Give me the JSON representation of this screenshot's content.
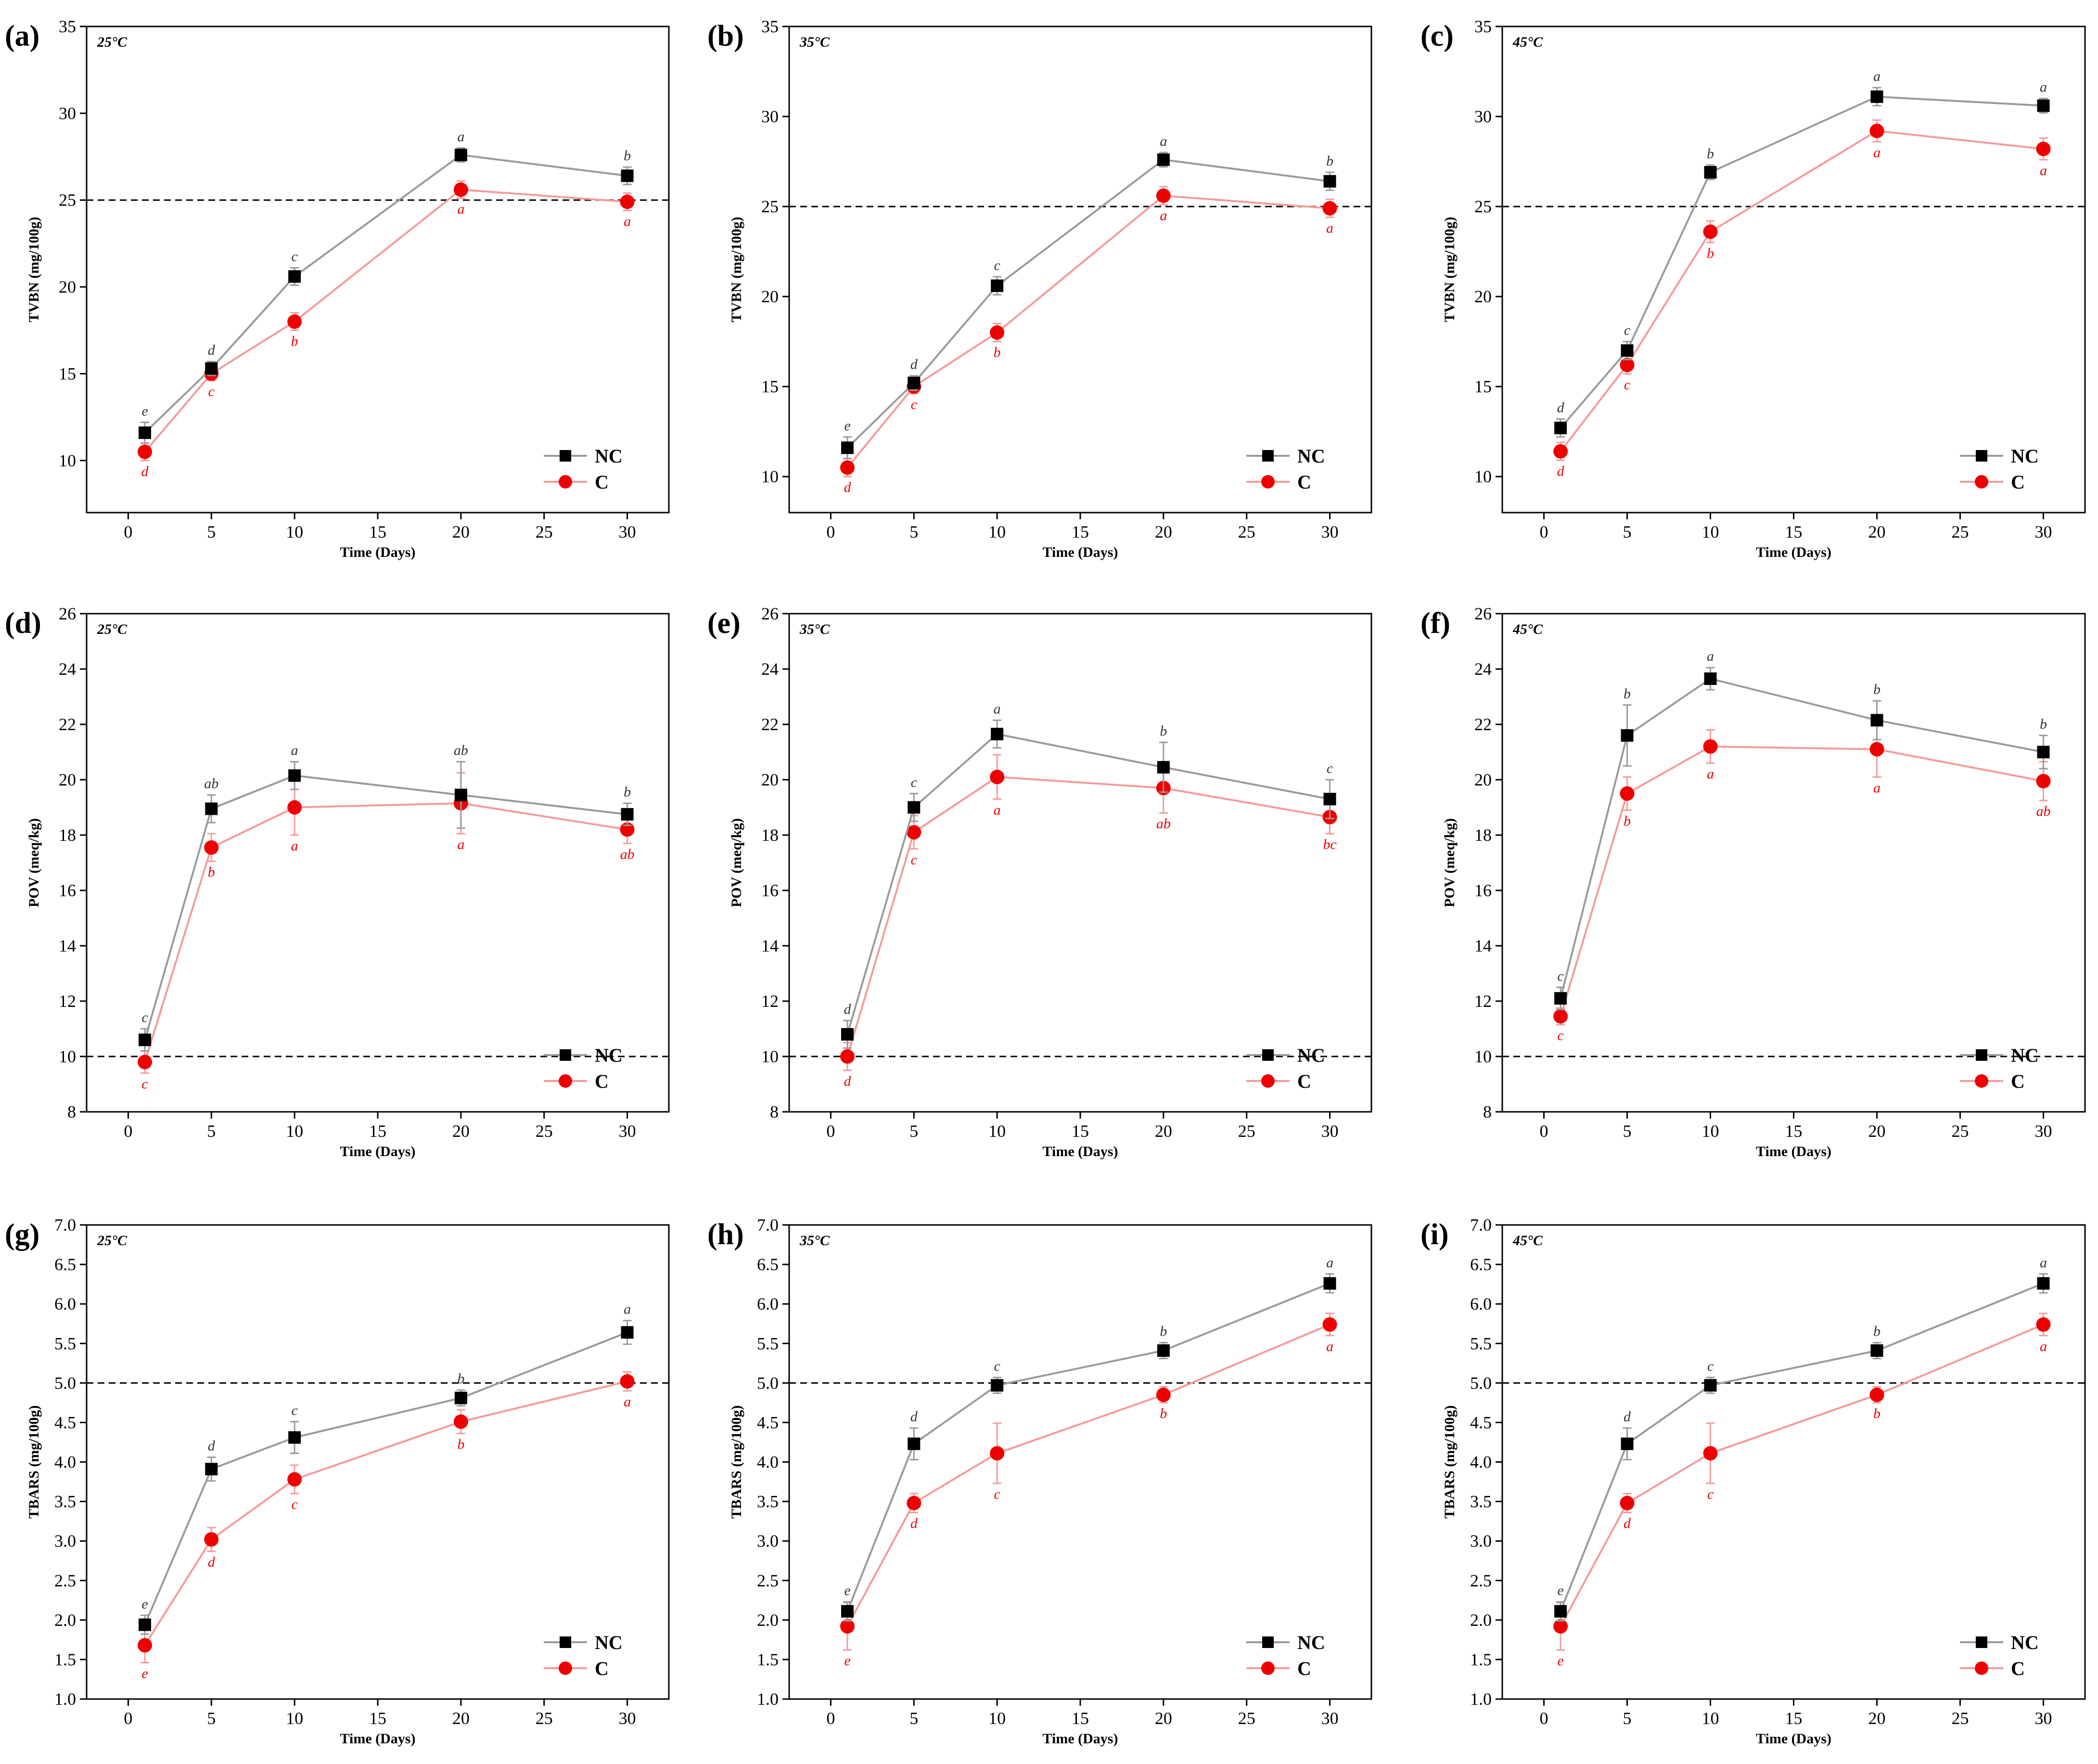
{
  "figure": {
    "series_names": [
      "NC",
      "C"
    ],
    "colors": {
      "NC_marker": "#000000",
      "NC_line": "#9a9a9a",
      "C_marker": "#ee0000",
      "C_line": "#f59a9a",
      "sig_NC": "#333333",
      "sig_C": "#ee0000"
    }
  },
  "chart_data": [
    {
      "panel": "(a)",
      "temperature": "25°C",
      "type": "line",
      "xlabel": "Time (Days)",
      "ylabel": "TVBN (mg/100g)",
      "xlim": [
        -2.5,
        32.5
      ],
      "ylim": [
        7,
        35
      ],
      "xticks": [
        0,
        5,
        10,
        15,
        20,
        25,
        30
      ],
      "yticks": [
        10,
        15,
        20,
        25,
        30,
        35
      ],
      "threshold": 25,
      "x": [
        1,
        5,
        10,
        20,
        30
      ],
      "series": [
        {
          "name": "NC",
          "values": [
            11.6,
            15.3,
            20.6,
            27.6,
            26.4
          ],
          "errors": [
            0.6,
            0.4,
            0.5,
            0.4,
            0.5
          ],
          "letters": [
            "e",
            "d",
            "c",
            "a",
            "b"
          ]
        },
        {
          "name": "C",
          "values": [
            10.5,
            15.0,
            18.0,
            25.6,
            24.9
          ],
          "errors": [
            0.5,
            0.4,
            0.5,
            0.5,
            0.5
          ],
          "letters": [
            "d",
            "c",
            "b",
            "a",
            "a"
          ]
        }
      ]
    },
    {
      "panel": "(b)",
      "temperature": "35°C",
      "type": "line",
      "xlabel": "Time (Days)",
      "ylabel": "TVBN (mg/100g)",
      "xlim": [
        -2.5,
        32.5
      ],
      "ylim": [
        8,
        35
      ],
      "xticks": [
        0,
        5,
        10,
        15,
        20,
        25,
        30
      ],
      "yticks": [
        10,
        15,
        20,
        25,
        30,
        35
      ],
      "threshold": 25,
      "x": [
        1,
        5,
        10,
        20,
        30
      ],
      "series": [
        {
          "name": "NC",
          "values": [
            11.6,
            15.2,
            20.6,
            27.6,
            26.4
          ],
          "errors": [
            0.6,
            0.4,
            0.5,
            0.4,
            0.5
          ],
          "letters": [
            "e",
            "d",
            "c",
            "a",
            "b"
          ]
        },
        {
          "name": "C",
          "values": [
            10.5,
            15.0,
            18.0,
            25.6,
            24.9
          ],
          "errors": [
            0.5,
            0.4,
            0.5,
            0.5,
            0.5
          ],
          "letters": [
            "d",
            "c",
            "b",
            "a",
            "a"
          ]
        }
      ]
    },
    {
      "panel": "(c)",
      "temperature": "45°C",
      "type": "line",
      "xlabel": "Time (Days)",
      "ylabel": "TVBN (mg/100g)",
      "xlim": [
        -2.5,
        32.5
      ],
      "ylim": [
        8,
        35
      ],
      "xticks": [
        0,
        5,
        10,
        15,
        20,
        25,
        30
      ],
      "yticks": [
        10,
        15,
        20,
        25,
        30,
        35
      ],
      "threshold": 25,
      "x": [
        1,
        5,
        10,
        20,
        30
      ],
      "series": [
        {
          "name": "NC",
          "values": [
            12.7,
            17.0,
            26.9,
            31.1,
            30.6
          ],
          "errors": [
            0.5,
            0.5,
            0.4,
            0.5,
            0.4
          ],
          "letters": [
            "d",
            "c",
            "b",
            "a",
            "a"
          ]
        },
        {
          "name": "C",
          "values": [
            11.4,
            16.2,
            23.6,
            29.2,
            28.2
          ],
          "errors": [
            0.5,
            0.5,
            0.6,
            0.6,
            0.6
          ],
          "letters": [
            "d",
            "c",
            "b",
            "a",
            "a"
          ]
        }
      ]
    },
    {
      "panel": "(d)",
      "temperature": "25°C",
      "type": "line",
      "xlabel": "Time (Days)",
      "ylabel": "POV (meq/kg)",
      "xlim": [
        -2.5,
        32.5
      ],
      "ylim": [
        8,
        26
      ],
      "xticks": [
        0,
        5,
        10,
        15,
        20,
        25,
        30
      ],
      "yticks": [
        8,
        10,
        12,
        14,
        16,
        18,
        20,
        22,
        24,
        26
      ],
      "threshold": 10,
      "x": [
        1,
        5,
        10,
        20,
        30
      ],
      "series": [
        {
          "name": "NC",
          "values": [
            10.6,
            18.95,
            20.15,
            19.45,
            18.75
          ],
          "errors": [
            0.4,
            0.5,
            0.5,
            1.2,
            0.4
          ],
          "letters": [
            "c",
            "ab",
            "a",
            "ab",
            "b"
          ]
        },
        {
          "name": "C",
          "values": [
            9.8,
            17.55,
            19.0,
            19.15,
            18.2
          ],
          "errors": [
            0.4,
            0.5,
            1.0,
            1.1,
            0.5
          ],
          "letters": [
            "c",
            "b",
            "a",
            "a",
            "ab"
          ]
        }
      ]
    },
    {
      "panel": "(e)",
      "temperature": "35°C",
      "type": "line",
      "xlabel": "Time (Days)",
      "ylabel": "POV (meq/kg)",
      "xlim": [
        -2.5,
        32.5
      ],
      "ylim": [
        8,
        26
      ],
      "xticks": [
        0,
        5,
        10,
        15,
        20,
        25,
        30
      ],
      "yticks": [
        8,
        10,
        12,
        14,
        16,
        18,
        20,
        22,
        24,
        26
      ],
      "threshold": 10,
      "x": [
        1,
        5,
        10,
        20,
        30
      ],
      "series": [
        {
          "name": "NC",
          "values": [
            10.8,
            19.0,
            21.65,
            20.45,
            19.3
          ],
          "errors": [
            0.5,
            0.5,
            0.5,
            0.9,
            0.7
          ],
          "letters": [
            "d",
            "c",
            "a",
            "b",
            "c"
          ]
        },
        {
          "name": "C",
          "values": [
            10.0,
            18.1,
            20.1,
            19.7,
            18.65
          ],
          "errors": [
            0.5,
            0.6,
            0.8,
            0.9,
            0.6
          ],
          "letters": [
            "d",
            "c",
            "a",
            "ab",
            "bc"
          ]
        }
      ]
    },
    {
      "panel": "(f)",
      "temperature": "45°C",
      "type": "line",
      "xlabel": "Time (Days)",
      "ylabel": "POV (meq/kg)",
      "xlim": [
        -2.5,
        32.5
      ],
      "ylim": [
        8,
        26
      ],
      "xticks": [
        0,
        5,
        10,
        15,
        20,
        25,
        30
      ],
      "yticks": [
        8,
        10,
        12,
        14,
        16,
        18,
        20,
        22,
        24,
        26
      ],
      "threshold": 10,
      "x": [
        1,
        5,
        10,
        20,
        30
      ],
      "series": [
        {
          "name": "NC",
          "values": [
            12.1,
            21.6,
            23.65,
            22.15,
            21.0
          ],
          "errors": [
            0.4,
            1.1,
            0.4,
            0.7,
            0.6
          ],
          "letters": [
            "c",
            "b",
            "a",
            "b",
            "b"
          ]
        },
        {
          "name": "C",
          "values": [
            11.45,
            19.5,
            21.2,
            21.1,
            19.95
          ],
          "errors": [
            0.3,
            0.6,
            0.6,
            1.0,
            0.7
          ],
          "letters": [
            "c",
            "b",
            "a",
            "a",
            "ab"
          ]
        }
      ]
    },
    {
      "panel": "(g)",
      "temperature": "25°C",
      "type": "line",
      "xlabel": "Time (Days)",
      "ylabel": "TBARS (mg/100g)",
      "xlim": [
        -2.5,
        32.5
      ],
      "ylim": [
        1.0,
        7.0
      ],
      "xticks": [
        0,
        5,
        10,
        15,
        20,
        25,
        30
      ],
      "yticks": [
        1.0,
        1.5,
        2.0,
        2.5,
        3.0,
        3.5,
        4.0,
        4.5,
        5.0,
        5.5,
        6.0,
        6.5,
        7.0
      ],
      "threshold": 5.0,
      "x": [
        1,
        5,
        10,
        20,
        30
      ],
      "series": [
        {
          "name": "NC",
          "values": [
            1.94,
            3.91,
            4.31,
            4.81,
            5.64
          ],
          "errors": [
            0.12,
            0.15,
            0.2,
            0.1,
            0.15
          ],
          "letters": [
            "e",
            "d",
            "c",
            "b",
            "a"
          ]
        },
        {
          "name": "C",
          "values": [
            1.68,
            3.02,
            3.78,
            4.51,
            5.02
          ],
          "errors": [
            0.22,
            0.15,
            0.18,
            0.15,
            0.12
          ],
          "letters": [
            "e",
            "d",
            "c",
            "b",
            "a"
          ]
        }
      ]
    },
    {
      "panel": "(h)",
      "temperature": "35°C",
      "type": "line",
      "xlabel": "Time (Days)",
      "ylabel": "TBARS (mg/100g)",
      "xlim": [
        -2.5,
        32.5
      ],
      "ylim": [
        1.0,
        7.0
      ],
      "xticks": [
        0,
        5,
        10,
        15,
        20,
        25,
        30
      ],
      "yticks": [
        1.0,
        1.5,
        2.0,
        2.5,
        3.0,
        3.5,
        4.0,
        4.5,
        5.0,
        5.5,
        6.0,
        6.5,
        7.0
      ],
      "threshold": 5.0,
      "x": [
        1,
        5,
        10,
        20,
        30
      ],
      "series": [
        {
          "name": "NC",
          "values": [
            2.11,
            4.23,
            4.97,
            5.41,
            6.26
          ],
          "errors": [
            0.12,
            0.2,
            0.1,
            0.1,
            0.12
          ],
          "letters": [
            "e",
            "d",
            "c",
            "b",
            "a"
          ]
        },
        {
          "name": "C",
          "values": [
            1.92,
            3.48,
            4.11,
            4.85,
            5.74
          ],
          "errors": [
            0.3,
            0.12,
            0.38,
            0.1,
            0.14
          ],
          "letters": [
            "e",
            "d",
            "c",
            "b",
            "a"
          ]
        }
      ]
    },
    {
      "panel": "(i)",
      "temperature": "45°C",
      "type": "line",
      "xlabel": "Time (Days)",
      "ylabel": "TBARS (mg/100g)",
      "xlim": [
        -2.5,
        32.5
      ],
      "ylim": [
        1.0,
        7.0
      ],
      "xticks": [
        0,
        5,
        10,
        15,
        20,
        25,
        30
      ],
      "yticks": [
        1.0,
        1.5,
        2.0,
        2.5,
        3.0,
        3.5,
        4.0,
        4.5,
        5.0,
        5.5,
        6.0,
        6.5,
        7.0
      ],
      "threshold": 5.0,
      "x": [
        1,
        5,
        10,
        20,
        30
      ],
      "series": [
        {
          "name": "NC",
          "values": [
            2.11,
            4.23,
            4.97,
            5.41,
            6.26
          ],
          "errors": [
            0.12,
            0.2,
            0.1,
            0.1,
            0.12
          ],
          "letters": [
            "e",
            "d",
            "c",
            "b",
            "a"
          ]
        },
        {
          "name": "C",
          "values": [
            1.92,
            3.48,
            4.11,
            4.85,
            5.74
          ],
          "errors": [
            0.3,
            0.12,
            0.38,
            0.1,
            0.14
          ],
          "letters": [
            "e",
            "d",
            "c",
            "b",
            "a"
          ]
        }
      ]
    }
  ]
}
